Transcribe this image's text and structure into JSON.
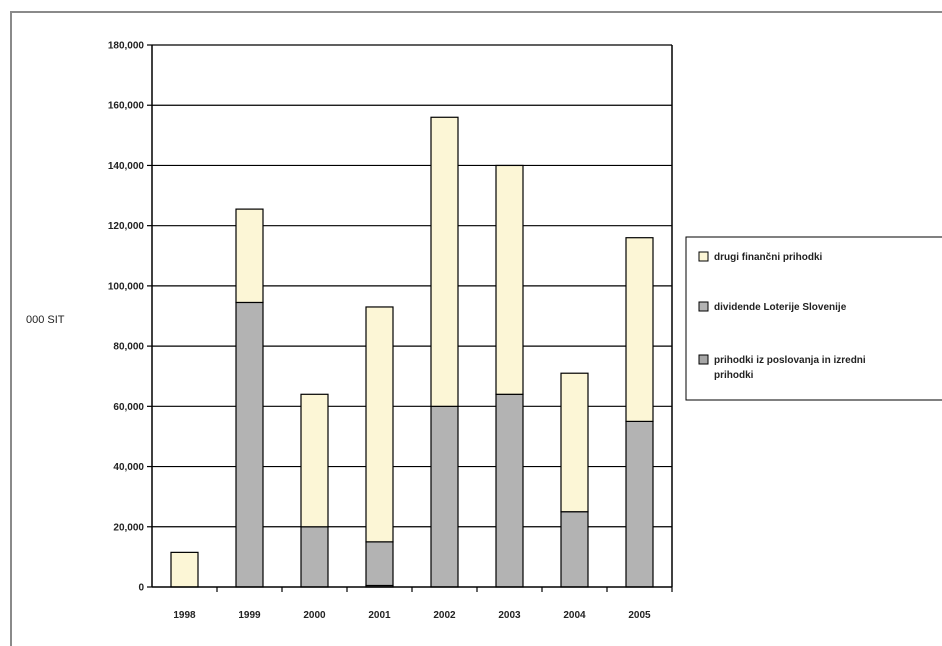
{
  "chart_data": {
    "type": "bar",
    "stacked": true,
    "title": "",
    "xlabel": "",
    "ylabel": "000 SIT",
    "ylim": [
      0,
      180000
    ],
    "yticks": [
      0,
      20000,
      40000,
      60000,
      80000,
      100000,
      120000,
      140000,
      160000,
      180000
    ],
    "ytick_labels": [
      "0",
      "20,000",
      "40,000",
      "60,000",
      "80,000",
      "100,000",
      "120,000",
      "140,000",
      "160,000",
      "180,000"
    ],
    "categories": [
      "1998",
      "1999",
      "2000",
      "2001",
      "2002",
      "2003",
      "2004",
      "2005"
    ],
    "series": [
      {
        "name": "prihodki iz poslovanja in izredni prihodki",
        "color": "#a6a6a6",
        "values": [
          0,
          0,
          0,
          500,
          0,
          0,
          0,
          0
        ]
      },
      {
        "name": "dividende Loterije Slovenije",
        "color": "#b3b3b3",
        "values": [
          0,
          94500,
          20000,
          14500,
          60000,
          64000,
          25000,
          55000
        ]
      },
      {
        "name": "drugi finančni prihodki",
        "color": "#fcf6d6",
        "values": [
          11500,
          31000,
          44000,
          78000,
          96000,
          76000,
          46000,
          61000
        ]
      }
    ],
    "legend": {
      "placement": "right",
      "order": [
        "drugi finančni prihodki",
        "dividende Loterije Slovenije",
        "prihodki iz poslovanja in izredni prihodki"
      ]
    },
    "grid": true
  },
  "colors": {
    "axis": "#000000",
    "grid": "#000000",
    "bar_outline": "#000000",
    "frame": "#8a8a8a"
  }
}
